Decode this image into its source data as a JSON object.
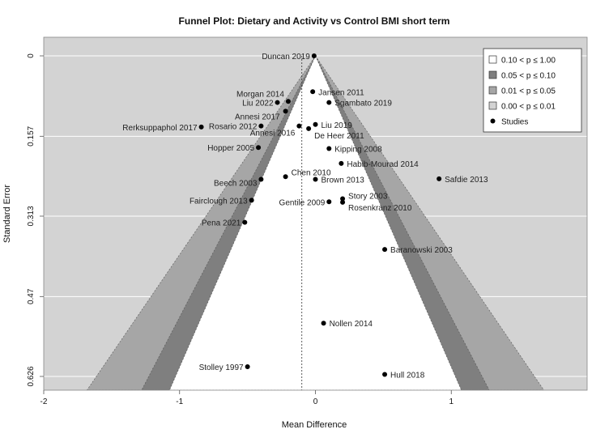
{
  "chart_data": {
    "type": "scatter",
    "subtype": "funnel",
    "title": "Funnel Plot: Dietary and Activity vs Control BMI short term",
    "xlabel": "Mean Difference",
    "ylabel": "Standard Error",
    "xlim": [
      -2.0,
      2.0
    ],
    "ylim": [
      0.0,
      0.626
    ],
    "y_reversed": true,
    "x_ticks": [
      -2,
      -1,
      0,
      1
    ],
    "y_ticks": [
      {
        "value": 0,
        "label": "0"
      },
      {
        "value": 0.157,
        "label": "0.157"
      },
      {
        "value": 0.313,
        "label": "0.313"
      },
      {
        "value": 0.47,
        "label": "0.47"
      },
      {
        "value": 0.626,
        "label": "0.626"
      }
    ],
    "grid": true,
    "legend_position": "top-right",
    "pooled_estimate": -0.1,
    "contour_levels": [
      {
        "label": "0.10 < p ≤ 1.00",
        "z": 1.645,
        "color": "#ffffff"
      },
      {
        "label": "0.05 < p ≤ 0.10",
        "z": 1.96,
        "color": "#7f7f7f"
      },
      {
        "label": "0.01 < p ≤ 0.05",
        "z": 2.576,
        "color": "#a6a6a6"
      },
      {
        "label": "0.00 < p ≤ 0.01",
        "z": 1000,
        "color": "#d3d3d3"
      }
    ],
    "legend_studies_label": "Studies",
    "points": [
      {
        "label": "Duncan 2019",
        "x": -0.01,
        "y": 0.0,
        "label_side": "left"
      },
      {
        "label": "Jansen 2011",
        "x": -0.02,
        "y": 0.07,
        "label_side": "right"
      },
      {
        "label": "Morgan 2014",
        "x": -0.2,
        "y": 0.089,
        "label_side": "left",
        "label_dy": -10
      },
      {
        "label": "Liu 2022",
        "x": -0.28,
        "y": 0.091,
        "label_side": "left"
      },
      {
        "label": "Sgambato 2019",
        "x": 0.1,
        "y": 0.091,
        "label_side": "right"
      },
      {
        "label": "Annesi 2017",
        "x": -0.22,
        "y": 0.108,
        "label_side": "left",
        "label_dx": -2,
        "label_dy": 6
      },
      {
        "label": "Rerksuppaphol 2017",
        "x": -0.84,
        "y": 0.139,
        "label_side": "left"
      },
      {
        "label": "Rosario 2012",
        "x": -0.4,
        "y": 0.137,
        "label_side": "left"
      },
      {
        "label": "Liu 2019",
        "x": 0.0,
        "y": 0.134,
        "label_side": "right"
      },
      {
        "label": "Annesi 2016",
        "x": -0.12,
        "y": 0.137,
        "label_side": "left",
        "label_dy": 8
      },
      {
        "label": "De Heer 2011",
        "x": -0.05,
        "y": 0.142,
        "label_side": "right",
        "label_dy": 8
      },
      {
        "label": "Hopper 2005",
        "x": -0.42,
        "y": 0.179,
        "label_side": "left"
      },
      {
        "label": "Kipping 2008",
        "x": 0.1,
        "y": 0.181,
        "label_side": "right"
      },
      {
        "label": "Habib-Mourad 2014",
        "x": 0.19,
        "y": 0.21,
        "label_side": "right"
      },
      {
        "label": "Safdie 2013",
        "x": 0.91,
        "y": 0.24,
        "label_side": "right"
      },
      {
        "label": "Chen 2010",
        "x": -0.22,
        "y": 0.236,
        "label_side": "right",
        "label_dy": -6
      },
      {
        "label": "Beech 2003",
        "x": -0.4,
        "y": 0.241,
        "label_side": "left",
        "label_dy": 4
      },
      {
        "label": "Brown 2013",
        "x": 0.0,
        "y": 0.241,
        "label_side": "right"
      },
      {
        "label": "Story 2003",
        "x": 0.2,
        "y": 0.279,
        "label_side": "right",
        "label_dy": -4
      },
      {
        "label": "Rosenkranz 2010",
        "x": 0.2,
        "y": 0.286,
        "label_side": "right",
        "label_dy": 6
      },
      {
        "label": "Gentile 2009",
        "x": 0.1,
        "y": 0.285,
        "label_side": "left"
      },
      {
        "label": "Fairclough 2013",
        "x": -0.47,
        "y": 0.282,
        "label_side": "left"
      },
      {
        "label": "Pena 2021",
        "x": -0.52,
        "y": 0.325,
        "label_side": "left"
      },
      {
        "label": "Baranowski 2003",
        "x": 0.51,
        "y": 0.378,
        "label_side": "right"
      },
      {
        "label": "Nollen 2014",
        "x": 0.06,
        "y": 0.522,
        "label_side": "right"
      },
      {
        "label": "Stolley 1997",
        "x": -0.5,
        "y": 0.607,
        "label_side": "left"
      },
      {
        "label": "Hull 2018",
        "x": 0.51,
        "y": 0.622,
        "label_side": "right"
      }
    ]
  }
}
